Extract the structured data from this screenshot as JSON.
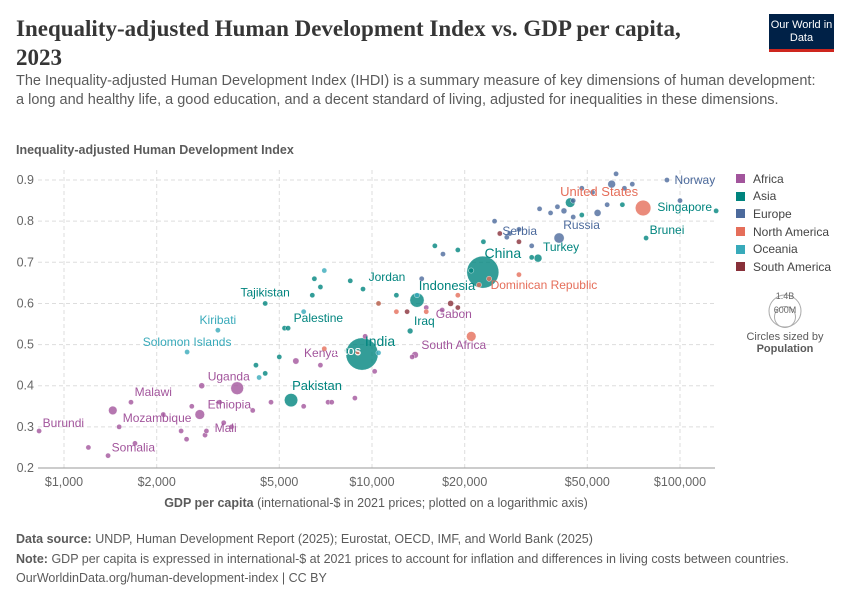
{
  "header": {
    "title": "Inequality-adjusted Human Development Index vs. GDP per capita, 2023",
    "subtitle": "The Inequality-adjusted Human Development Index (IHDI) is a summary measure of key dimensions of human development: a long and healthy life, a good education, and a decent standard of living, adjusted for inequalities in these dimensions.",
    "logo": "Our World in Data"
  },
  "legend": {
    "items": [
      {
        "name": "Africa",
        "color": "#a2559c"
      },
      {
        "name": "Asia",
        "color": "#00847e"
      },
      {
        "name": "Europe",
        "color": "#4c6a9c"
      },
      {
        "name": "North America",
        "color": "#e56e5a"
      },
      {
        "name": "Oceania",
        "color": "#38aaba"
      },
      {
        "name": "South America",
        "color": "#883039"
      }
    ],
    "size": {
      "big": "1.4B",
      "small": "600M",
      "caption": "Circles sized by",
      "variable": "Population"
    }
  },
  "footer": {
    "source_label": "Data source:",
    "source": "UNDP, Human Development Report (2025); Eurostat, OECD, IMF, and World Bank (2025)",
    "note_label": "Note:",
    "note": "GDP per capita is expressed in international-$ at 2021 prices to account for inflation and differences in living costs between countries.",
    "url": "OurWorldinData.org/human-development-index | CC BY"
  },
  "chart_data": {
    "type": "scatter",
    "ylabel": "Inequality-adjusted Human Development Index",
    "xlabel_bold": "GDP per capita",
    "xlabel_rest": "(international-$ in 2021 prices; plotted on a logarithmic axis)",
    "x_scale": "log",
    "xlim": [
      830,
      129000
    ],
    "ylim": [
      0.2,
      0.93
    ],
    "grid": true,
    "legend_position": "right",
    "x_ticks": [
      {
        "v": 1000,
        "l": "$1,000"
      },
      {
        "v": 2000,
        "l": "$2,000"
      },
      {
        "v": 5000,
        "l": "$5,000"
      },
      {
        "v": 10000,
        "l": "$10,000"
      },
      {
        "v": 20000,
        "l": "$20,000"
      },
      {
        "v": 50000,
        "l": "$50,000"
      },
      {
        "v": 100000,
        "l": "$100,000"
      }
    ],
    "y_ticks": [
      0.2,
      0.3,
      0.4,
      0.5,
      0.6,
      0.7,
      0.8,
      0.9
    ],
    "labeled": [
      {
        "name": "Burundi",
        "gdp": 830,
        "ihdi": 0.29,
        "region": "Africa",
        "pop": 14
      },
      {
        "name": "Somalia",
        "gdp": 1390,
        "ihdi": 0.23,
        "region": "Africa",
        "pop": 19
      },
      {
        "name": "Malawi",
        "gdp": 1650,
        "ihdi": 0.36,
        "region": "Africa",
        "pop": 21
      },
      {
        "name": "Mozambique",
        "gdp": 1510,
        "ihdi": 0.3,
        "region": "Africa",
        "pop": 34
      },
      {
        "name": "Ethiopia",
        "gdp": 2760,
        "ihdi": 0.33,
        "region": "Africa",
        "pop": 129
      },
      {
        "name": "Uganda",
        "gdp": 2800,
        "ihdi": 0.4,
        "region": "Africa",
        "pop": 49
      },
      {
        "name": "Mali",
        "gdp": 2870,
        "ihdi": 0.28,
        "region": "Africa",
        "pop": 23
      },
      {
        "name": "Kenya",
        "gdp": 5660,
        "ihdi": 0.46,
        "region": "Africa",
        "pop": 55
      },
      {
        "name": "Pakistan",
        "gdp": 5460,
        "ihdi": 0.365,
        "region": "Asia",
        "pop": 245
      },
      {
        "name": "India",
        "gdp": 9280,
        "ihdi": 0.477,
        "region": "Asia",
        "pop": 1430
      },
      {
        "name": "Laos",
        "gdp": 8300,
        "ihdi": 0.485,
        "region": "Asia",
        "pop": 8
      },
      {
        "name": "Solomon Islands",
        "gdp": 2510,
        "ihdi": 0.482,
        "region": "Oceania",
        "pop": 1
      },
      {
        "name": "Kiribati",
        "gdp": 3160,
        "ihdi": 0.535,
        "region": "Oceania",
        "pop": 1
      },
      {
        "name": "Tajikistan",
        "gdp": 4500,
        "ihdi": 0.6,
        "region": "Asia",
        "pop": 10
      },
      {
        "name": "Palestine",
        "gdp": 5340,
        "ihdi": 0.54,
        "region": "Asia",
        "pop": 5
      },
      {
        "name": "Jordan",
        "gdp": 9350,
        "ihdi": 0.635,
        "region": "Asia",
        "pop": 11
      },
      {
        "name": "Indonesia",
        "gdp": 14000,
        "ihdi": 0.608,
        "region": "Asia",
        "pop": 278
      },
      {
        "name": "Iraq",
        "gdp": 13300,
        "ihdi": 0.533,
        "region": "Asia",
        "pop": 45
      },
      {
        "name": "South Africa",
        "gdp": 13800,
        "ihdi": 0.475,
        "region": "Africa",
        "pop": 61
      },
      {
        "name": "Gabon",
        "gdp": 16900,
        "ihdi": 0.584,
        "region": "Africa",
        "pop": 2
      },
      {
        "name": "China",
        "gdp": 22900,
        "ihdi": 0.676,
        "region": "Asia",
        "pop": 1410
      },
      {
        "name": "Dominican Republic",
        "gdp": 22250,
        "ihdi": 0.645,
        "region": "North America",
        "pop": 11
      },
      {
        "name": "Serbia",
        "gdp": 27400,
        "ihdi": 0.761,
        "region": "Europe",
        "pop": 7
      },
      {
        "name": "Turkey",
        "gdp": 34600,
        "ihdi": 0.71,
        "region": "Asia",
        "pop": 85
      },
      {
        "name": "Russia",
        "gdp": 40500,
        "ihdi": 0.759,
        "region": "Europe",
        "pop": 144
      },
      {
        "name": "United States",
        "gdp": 75900,
        "ihdi": 0.832,
        "region": "North America",
        "pop": 335
      },
      {
        "name": "Singapore",
        "gdp": 131000,
        "ihdi": 0.825,
        "region": "Asia",
        "pop": 6
      },
      {
        "name": "Norway",
        "gdp": 90700,
        "ihdi": 0.9,
        "region": "Europe",
        "pop": 5
      },
      {
        "name": "Brunei",
        "gdp": 77600,
        "ihdi": 0.759,
        "region": "Asia",
        "pop": 0.5
      }
    ],
    "other_points": [
      [
        62000,
        0.915,
        "Europe",
        3
      ],
      [
        60000,
        0.89,
        "Europe",
        84
      ],
      [
        48000,
        0.88,
        "Europe",
        6
      ],
      [
        52000,
        0.87,
        "Europe",
        5
      ],
      [
        45000,
        0.85,
        "Europe",
        10
      ],
      [
        40000,
        0.835,
        "Europe",
        9
      ],
      [
        42000,
        0.825,
        "Europe",
        48
      ],
      [
        35000,
        0.83,
        "Europe",
        4
      ],
      [
        38000,
        0.82,
        "Europe",
        10
      ],
      [
        54000,
        0.82,
        "Europe",
        68
      ],
      [
        58000,
        0.84,
        "Europe",
        9
      ],
      [
        66000,
        0.88,
        "Europe",
        17
      ],
      [
        70000,
        0.89,
        "Europe",
        5
      ],
      [
        28000,
        0.77,
        "Europe",
        2
      ],
      [
        30000,
        0.78,
        "Europe",
        3
      ],
      [
        33000,
        0.74,
        "Europe",
        4
      ],
      [
        17000,
        0.72,
        "Europe",
        3
      ],
      [
        14500,
        0.66,
        "Europe",
        3
      ],
      [
        25000,
        0.8,
        "Europe",
        6
      ],
      [
        45000,
        0.81,
        "Europe",
        38
      ],
      [
        100000,
        0.85,
        "Europe",
        1
      ],
      [
        44000,
        0.845,
        "Asia",
        125
      ],
      [
        65000,
        0.84,
        "Asia",
        3
      ],
      [
        48000,
        0.815,
        "Asia",
        9
      ],
      [
        16000,
        0.74,
        "Asia",
        3
      ],
      [
        19000,
        0.73,
        "Asia",
        5
      ],
      [
        23000,
        0.75,
        "Asia",
        4
      ],
      [
        33000,
        0.712,
        "Asia",
        30
      ],
      [
        12000,
        0.62,
        "Asia",
        4
      ],
      [
        8500,
        0.655,
        "Asia",
        6
      ],
      [
        10500,
        0.6,
        "Asia",
        34
      ],
      [
        6800,
        0.64,
        "Asia",
        3
      ],
      [
        6500,
        0.66,
        "Asia",
        7
      ],
      [
        4500,
        0.43,
        "Asia",
        17
      ],
      [
        5000,
        0.47,
        "Asia",
        30
      ],
      [
        5200,
        0.54,
        "Asia",
        5
      ],
      [
        6400,
        0.62,
        "Asia",
        36
      ],
      [
        4200,
        0.45,
        "Asia",
        3
      ],
      [
        21000,
        0.68,
        "Asia",
        34
      ],
      [
        3200,
        0.36,
        "Africa",
        10
      ],
      [
        2100,
        0.33,
        "Africa",
        7
      ],
      [
        2400,
        0.29,
        "Africa",
        30
      ],
      [
        2600,
        0.35,
        "Africa",
        6
      ],
      [
        1700,
        0.26,
        "Africa",
        12
      ],
      [
        1200,
        0.25,
        "Africa",
        6
      ],
      [
        2500,
        0.27,
        "Africa",
        18
      ],
      [
        2900,
        0.29,
        "Africa",
        5
      ],
      [
        3300,
        0.31,
        "Africa",
        8
      ],
      [
        3500,
        0.3,
        "Africa",
        14
      ],
      [
        3650,
        0.394,
        "Africa",
        224
      ],
      [
        1440,
        0.34,
        "Africa",
        102
      ],
      [
        4100,
        0.34,
        "Africa",
        28
      ],
      [
        4700,
        0.36,
        "Africa",
        3
      ],
      [
        6000,
        0.35,
        "Africa",
        17
      ],
      [
        7200,
        0.36,
        "Africa",
        33
      ],
      [
        7400,
        0.36,
        "Africa",
        10
      ],
      [
        8800,
        0.37,
        "Africa",
        15
      ],
      [
        6800,
        0.45,
        "Africa",
        3
      ],
      [
        10200,
        0.435,
        "Africa",
        2
      ],
      [
        9500,
        0.52,
        "Africa",
        38
      ],
      [
        15000,
        0.59,
        "Africa",
        12
      ],
      [
        13500,
        0.47,
        "Africa",
        2
      ],
      [
        18000,
        0.6,
        "South America",
        50
      ],
      [
        19000,
        0.59,
        "South America",
        34
      ],
      [
        26000,
        0.77,
        "South America",
        20
      ],
      [
        13000,
        0.58,
        "South America",
        12
      ],
      [
        30000,
        0.75,
        "South America",
        3
      ],
      [
        7000,
        0.49,
        "North America",
        10
      ],
      [
        12000,
        0.58,
        "North America",
        3
      ],
      [
        10500,
        0.6,
        "North America",
        18
      ],
      [
        24000,
        0.66,
        "North America",
        5
      ],
      [
        30000,
        0.67,
        "North America",
        4
      ],
      [
        21000,
        0.52,
        "North America",
        128
      ],
      [
        15000,
        0.58,
        "North America",
        6
      ],
      [
        9000,
        0.48,
        "North America",
        12
      ],
      [
        19000,
        0.62,
        "North America",
        2
      ],
      [
        6000,
        0.58,
        "Oceania",
        1
      ],
      [
        7000,
        0.68,
        "Oceania",
        1
      ],
      [
        4300,
        0.42,
        "Oceania",
        10
      ],
      [
        10500,
        0.48,
        "Oceania",
        1
      ],
      [
        14000,
        0.62,
        "Oceania",
        1
      ]
    ]
  }
}
